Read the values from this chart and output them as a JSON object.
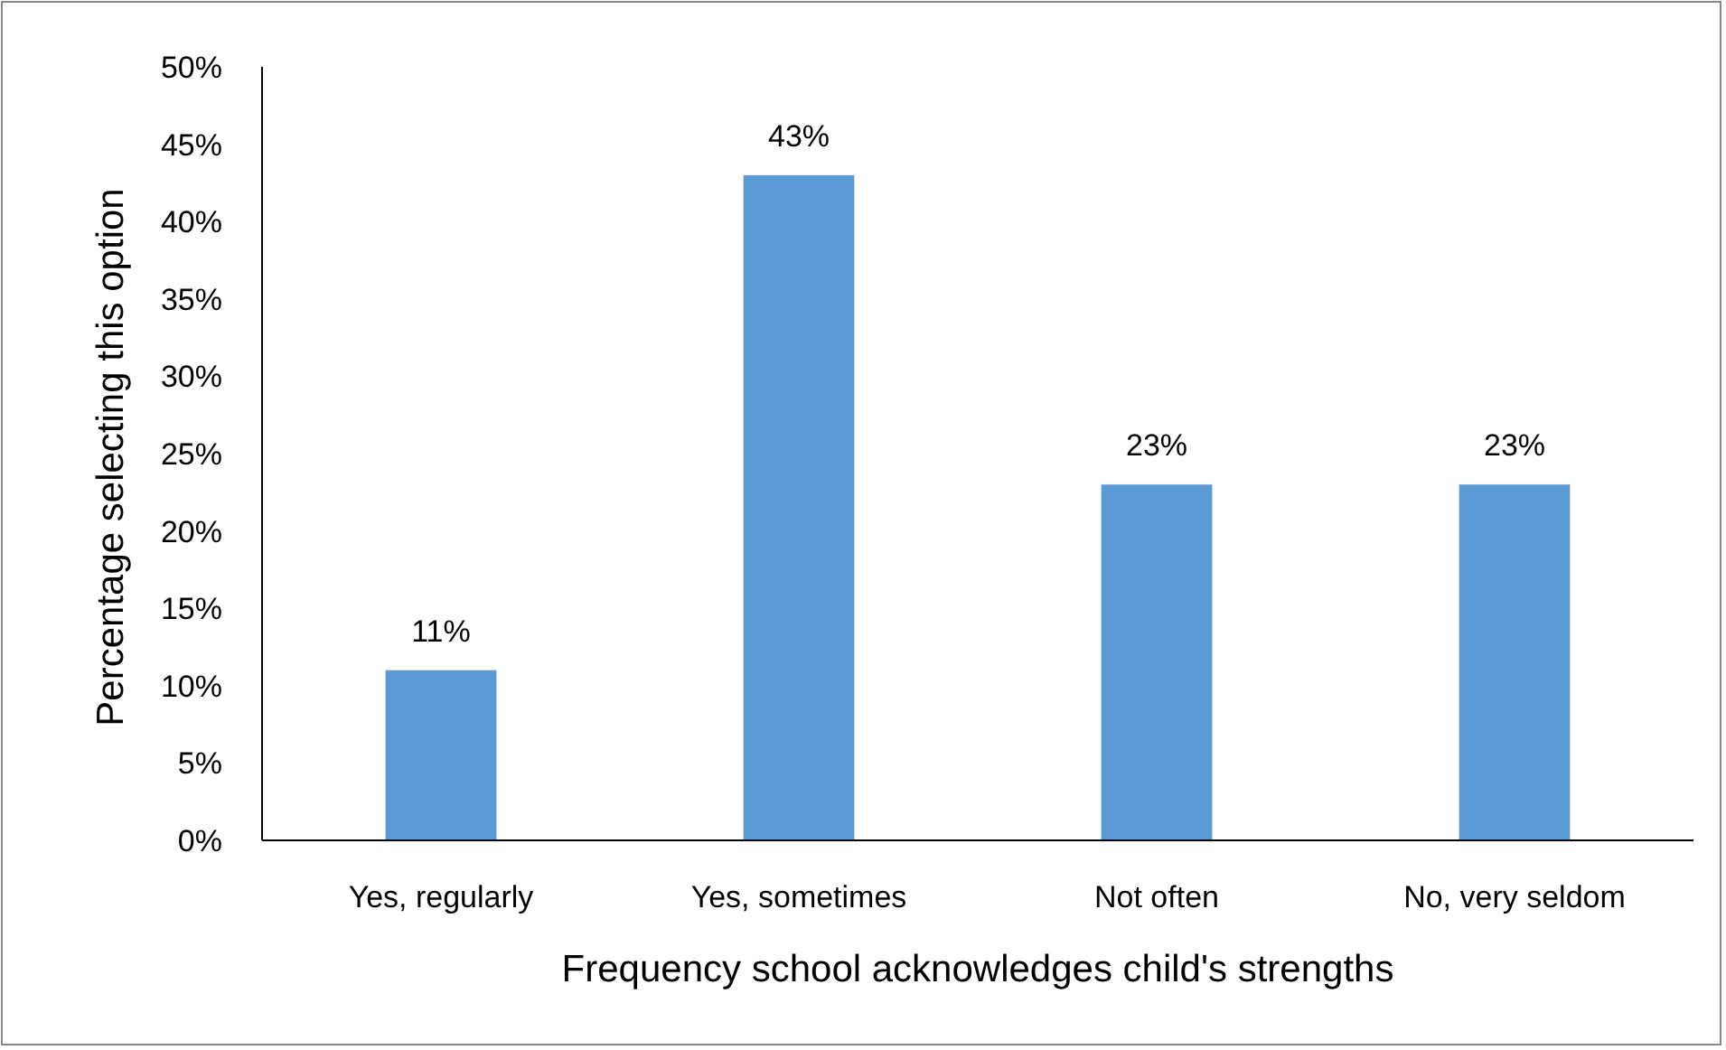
{
  "chart_data": {
    "type": "bar",
    "xlabel": "Frequency school acknowledges child's strengths",
    "ylabel": "Percentage selecting this option",
    "categories": [
      "Yes, regularly",
      "Yes, sometimes",
      "Not often",
      "No, very seldom"
    ],
    "values": [
      11,
      43,
      23,
      23
    ],
    "value_labels": [
      "11%",
      "43%",
      "23%",
      "23%"
    ],
    "color": "#5b9bd5",
    "ylim": [
      0,
      50
    ],
    "yticks": [
      {
        "value": 0,
        "label": "0%"
      },
      {
        "value": 5,
        "label": "5%"
      },
      {
        "value": 10,
        "label": "10%"
      },
      {
        "value": 15,
        "label": "15%"
      },
      {
        "value": 20,
        "label": "20%"
      },
      {
        "value": 25,
        "label": "25%"
      },
      {
        "value": 30,
        "label": "30%"
      },
      {
        "value": 35,
        "label": "35%"
      },
      {
        "value": 40,
        "label": "40%"
      },
      {
        "value": 45,
        "label": "45%"
      },
      {
        "value": 50,
        "label": "50%"
      }
    ],
    "grid": false
  }
}
